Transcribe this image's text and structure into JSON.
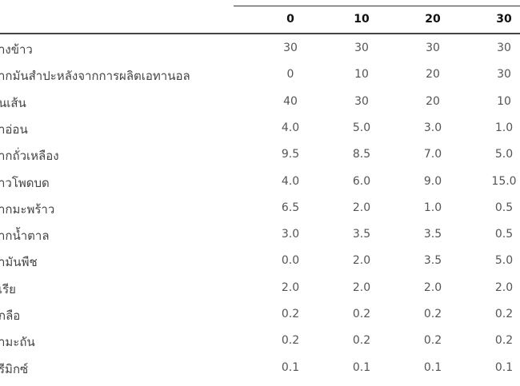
{
  "table": {
    "columns": [
      "0",
      "10",
      "20",
      "30"
    ],
    "rows": [
      {
        "label": "างข้าว",
        "values": [
          "30",
          "30",
          "30",
          "30"
        ]
      },
      {
        "label": "ากมันสำปะหลังจากการผลิตเอทานอล",
        "values": [
          "0",
          "10",
          "20",
          "30"
        ]
      },
      {
        "label": "นเส้น",
        "values": [
          "40",
          "30",
          "20",
          "10"
        ]
      },
      {
        "label": "าอ่อน",
        "values": [
          "4.0",
          "5.0",
          "3.0",
          "1.0"
        ]
      },
      {
        "label": "ากถั่วเหลือง",
        "values": [
          "9.5",
          "8.5",
          "7.0",
          "5.0"
        ]
      },
      {
        "label": "าวโพดบด",
        "values": [
          "4.0",
          "6.0",
          "9.0",
          "15.0"
        ]
      },
      {
        "label": "ากมะพร้าว",
        "values": [
          "6.5",
          "2.0",
          "1.0",
          "0.5"
        ]
      },
      {
        "label": "ากน้ำตาล",
        "values": [
          "3.0",
          "3.5",
          "3.5",
          "0.5"
        ]
      },
      {
        "label": "ำมันพืช",
        "values": [
          "0.0",
          "2.0",
          "3.5",
          "5.0"
        ]
      },
      {
        "label": "เรีย",
        "values": [
          "2.0",
          "2.0",
          "2.0",
          "2.0"
        ]
      },
      {
        "label": "กลือ",
        "values": [
          "0.2",
          "0.2",
          "0.2",
          "0.2"
        ]
      },
      {
        "label": "ามะถัน",
        "values": [
          "0.2",
          "0.2",
          "0.2",
          "0.2"
        ]
      },
      {
        "label": "รีมิกซ์",
        "values": [
          "0.1",
          "0.1",
          "0.1",
          "0.1"
        ]
      }
    ]
  }
}
